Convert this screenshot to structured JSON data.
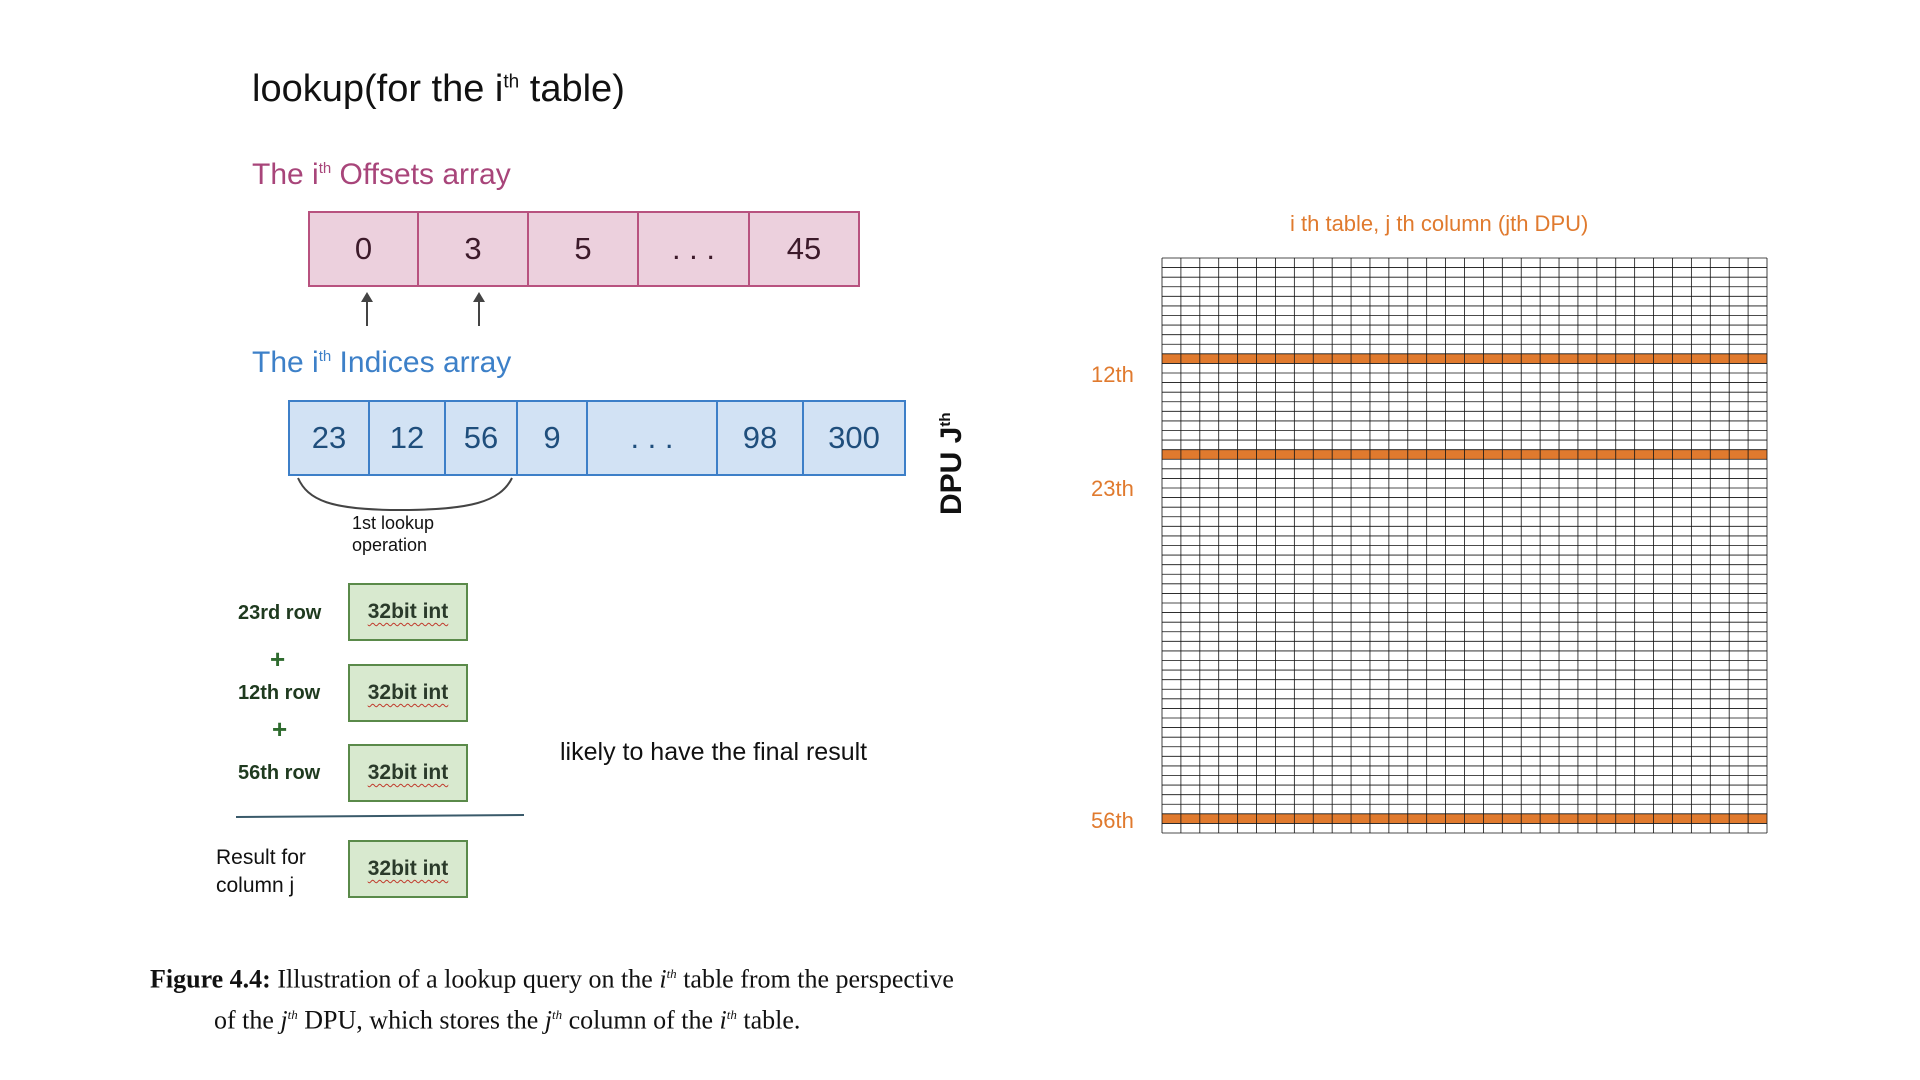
{
  "title": {
    "prefix": "lookup(for the i",
    "sup": "th",
    "suffix": " table)"
  },
  "offsets": {
    "title_prefix": "The i",
    "title_sup": "th",
    "title_suffix": " Offsets array",
    "cells": [
      "0",
      "3",
      "5",
      ". . .",
      "45"
    ]
  },
  "indices": {
    "title_prefix": "The i",
    "title_sup": "th",
    "title_suffix": " Indices array",
    "cells": [
      "23",
      "12",
      "56",
      "9",
      ". . .",
      "98",
      "300"
    ]
  },
  "brace_note_line1": "1st lookup",
  "brace_note_line2": "operation",
  "rows": [
    {
      "label": "23rd row",
      "value": "32bit int"
    },
    {
      "label": "12th row",
      "value": "32bit int"
    },
    {
      "label": "56th row",
      "value": "32bit int"
    }
  ],
  "plus_sign": "+",
  "result": {
    "label_line1": "Result for",
    "label_line2": "column j",
    "value": "32bit int"
  },
  "likely_text": "likely to have the final result",
  "dpu": {
    "prefix": "DPU J",
    "sup": "th"
  },
  "grid": {
    "title": "i th table, j th column (jth DPU)",
    "highlight_labels": [
      "12th",
      "23th",
      "56th"
    ],
    "highlight_color": "#e07a2e",
    "line_color": "#111111"
  },
  "caption": {
    "fig_label": "Figure 4.4:",
    "line1_a": " Illustration of a lookup query on the ",
    "line1_i": "i",
    "line1_sup": "th",
    "line1_b": " table from the perspective",
    "line2_a": "of the ",
    "line2_j": "j",
    "line2_sup": "th",
    "line2_b": " DPU, which stores the ",
    "line2_j2": "j",
    "line2_sup2": "th",
    "line2_c": " column of the ",
    "line2_i": "i",
    "line2_sup3": "th",
    "line2_d": " table."
  }
}
